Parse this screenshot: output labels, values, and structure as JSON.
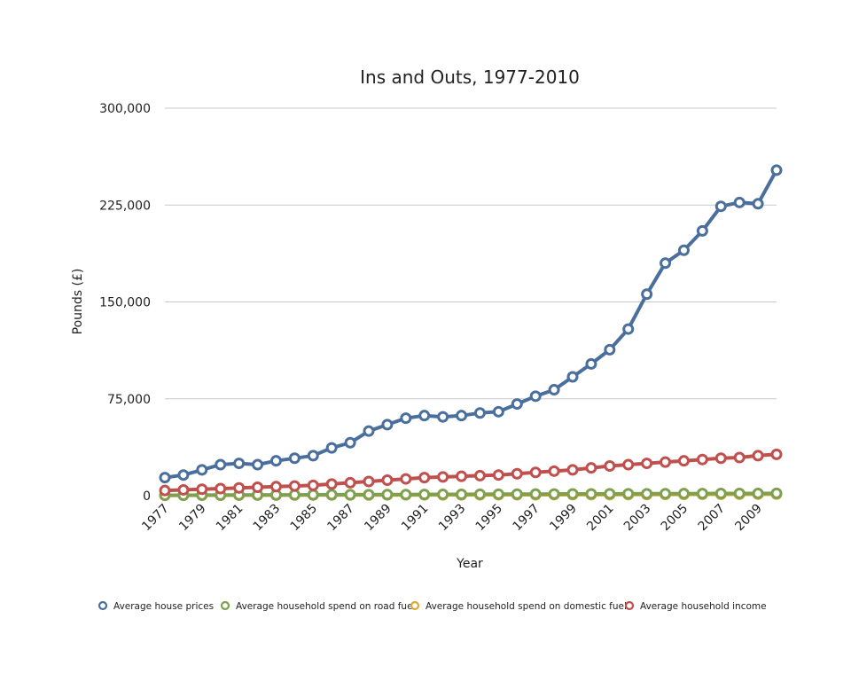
{
  "chart_data": {
    "type": "line",
    "title": "Ins and Outs, 1977-2010",
    "xlabel": "Year",
    "ylabel": "Pounds (£)",
    "ylim": [
      0,
      300000
    ],
    "yticks": [
      0,
      75000,
      150000,
      225000,
      300000
    ],
    "ytick_labels": [
      "0",
      "75,000",
      "150,000",
      "225,000",
      "300,000"
    ],
    "x": [
      1977,
      1978,
      1979,
      1980,
      1981,
      1982,
      1983,
      1984,
      1985,
      1986,
      1987,
      1988,
      1989,
      1990,
      1991,
      1992,
      1993,
      1994,
      1995,
      1996,
      1997,
      1998,
      1999,
      2000,
      2001,
      2002,
      2003,
      2004,
      2005,
      2006,
      2007,
      2008,
      2009,
      2010
    ],
    "xtick_labels": [
      "1977",
      "1979",
      "1981",
      "1983",
      "1985",
      "1987",
      "1989",
      "1991",
      "1993",
      "1995",
      "1997",
      "1999",
      "2001",
      "2003",
      "2005",
      "2007",
      "2009"
    ],
    "grid": "horizontal",
    "legend_position": "bottom",
    "series": [
      {
        "name": "Average house prices",
        "color": "#4a6f9c",
        "values": [
          14000,
          16000,
          20000,
          24000,
          25000,
          24000,
          27000,
          29000,
          31000,
          37000,
          41000,
          50000,
          55000,
          60000,
          62000,
          61000,
          62000,
          64000,
          65000,
          71000,
          77000,
          82000,
          92000,
          102000,
          113000,
          129000,
          156000,
          180000,
          190000,
          205000,
          224000,
          227000,
          226000,
          252000
        ]
      },
      {
        "name": "Average household spend on road fuel",
        "color": "#7ea04f",
        "values": [
          300,
          350,
          400,
          450,
          500,
          550,
          600,
          650,
          700,
          750,
          750,
          800,
          850,
          900,
          950,
          1000,
          1050,
          1100,
          1150,
          1200,
          1250,
          1300,
          1350,
          1400,
          1450,
          1450,
          1500,
          1550,
          1600,
          1650,
          1700,
          1750,
          1750,
          1800
        ]
      },
      {
        "name": "Average household spend on domestic fuel",
        "color": "#e0a83a",
        "values": [
          250,
          280,
          310,
          340,
          370,
          400,
          420,
          440,
          460,
          480,
          500,
          520,
          540,
          560,
          580,
          600,
          620,
          640,
          660,
          680,
          700,
          720,
          740,
          760,
          780,
          800,
          850,
          900,
          950,
          1000,
          1050,
          1100,
          1150,
          1200
        ]
      },
      {
        "name": "Average household income",
        "color": "#c0504d",
        "values": [
          4000,
          4500,
          5000,
          5500,
          6000,
          6500,
          7000,
          7500,
          8000,
          9000,
          10000,
          11000,
          12000,
          13000,
          14000,
          14500,
          15000,
          15500,
          16000,
          17000,
          18000,
          19000,
          20000,
          21500,
          23000,
          24000,
          25000,
          26000,
          27000,
          28000,
          29000,
          29500,
          31000,
          32000
        ]
      }
    ]
  }
}
